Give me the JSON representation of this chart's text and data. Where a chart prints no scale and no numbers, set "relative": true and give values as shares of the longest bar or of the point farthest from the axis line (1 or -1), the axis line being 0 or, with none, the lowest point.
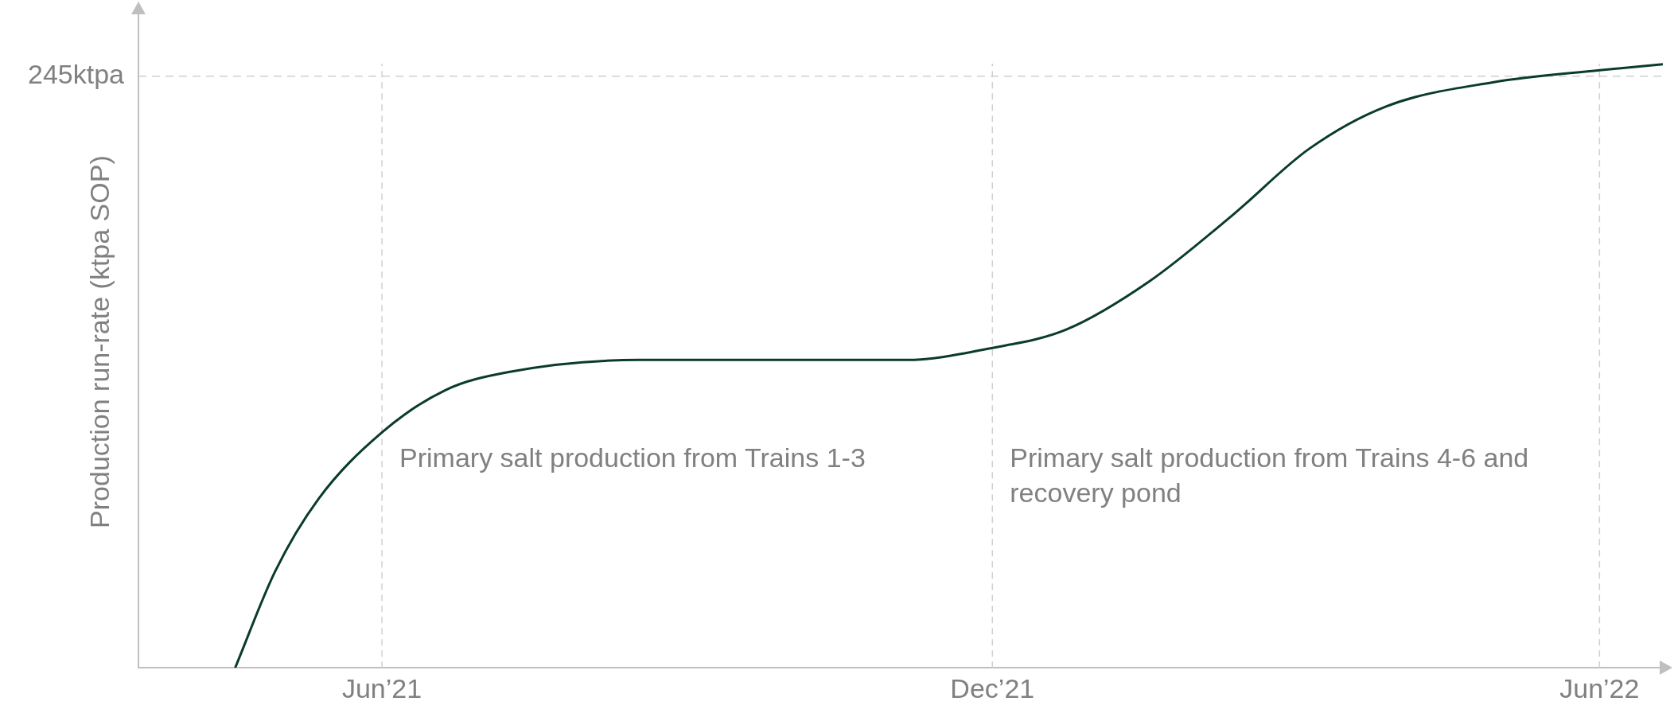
{
  "chart_data": {
    "type": "line",
    "relative": true,
    "ylabel": "Production run-rate (ktpa SOP)",
    "x": [
      "2021-04-18",
      "2021-04-30",
      "2021-05-13",
      "2021-06-01",
      "2021-06-20",
      "2021-07-09",
      "2021-08-17",
      "2021-10-04",
      "2021-11-05",
      "2021-12-01",
      "2021-12-23",
      "2022-01-17",
      "2022-02-11",
      "2022-03-06",
      "2022-03-29",
      "2022-04-30",
      "2022-06-01",
      "2022-06-20"
    ],
    "series": [
      {
        "color": "#0b3b2e",
        "values": [
          0,
          0.16,
          0.28,
          0.39,
          0.46,
          0.49,
          0.51,
          0.51,
          0.51,
          0.53,
          0.56,
          0.64,
          0.75,
          0.86,
          0.93,
          0.97,
          0.99,
          1.0
        ]
      }
    ],
    "xlim": [
      "2021-03-20",
      "2022-06-20"
    ],
    "xticks": [
      {
        "value": "2021-06-01",
        "label": "Jun’21"
      },
      {
        "value": "2021-12-01",
        "label": "Dec’21"
      },
      {
        "value": "2022-06-01",
        "label": "Jun’22"
      }
    ],
    "ref_lines": [
      {
        "axis": "y",
        "value": 0.98,
        "label": "245ktpa",
        "color": "#d0d0d0",
        "line_style": "dashed"
      }
    ],
    "annotations": [
      "Primary salt production from Trains 1-3",
      "Primary salt production from Trains 4-6 and recovery pond"
    ],
    "grid": "x",
    "legend": false,
    "marker": "none",
    "line_style": "solid"
  }
}
